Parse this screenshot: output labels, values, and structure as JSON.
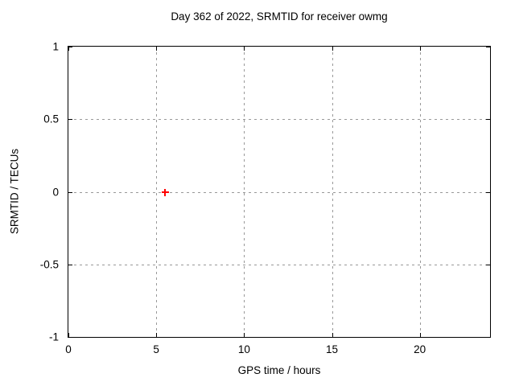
{
  "page": {
    "background_color": "#ffffff",
    "text_color": "#000000"
  },
  "chart_data": {
    "type": "scatter",
    "title": "Day 362 of 2022, SRMTID for receiver owmg",
    "xlabel": "GPS time / hours",
    "ylabel": "SRMTID / TECUs",
    "xlim": [
      0,
      24
    ],
    "ylim": [
      -1,
      1
    ],
    "grid": true,
    "grid_color": "#999999",
    "border_color": "#000000",
    "legend": "none",
    "xticks": [
      {
        "value": 0,
        "label": "0"
      },
      {
        "value": 5,
        "label": "5"
      },
      {
        "value": 10,
        "label": "10"
      },
      {
        "value": 15,
        "label": "15"
      },
      {
        "value": 20,
        "label": "20"
      }
    ],
    "yticks": [
      {
        "value": -1,
        "label": "-1"
      },
      {
        "value": -0.5,
        "label": "-0.5"
      },
      {
        "value": 0,
        "label": "0"
      },
      {
        "value": 0.5,
        "label": "0.5"
      },
      {
        "value": 1,
        "label": "1"
      }
    ],
    "series": [
      {
        "name": "SRMTID",
        "marker": "plus",
        "color": "#ff0000",
        "points": [
          {
            "x": 5.5,
            "y": 0.0
          }
        ]
      }
    ]
  }
}
